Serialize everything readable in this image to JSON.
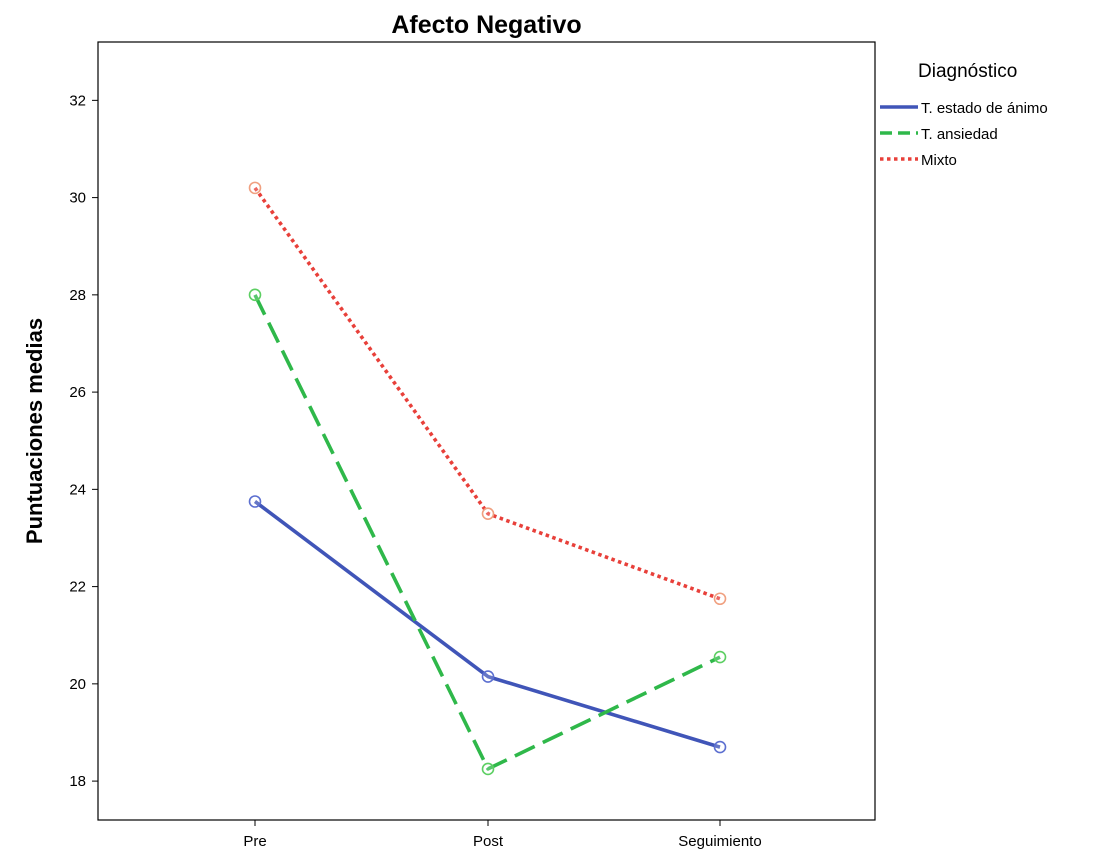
{
  "chart_data": {
    "type": "line",
    "title": "Afecto Negativo",
    "ylabel": "Puntuaciones medias",
    "xlabel": "",
    "categories": [
      "Pre",
      "Post",
      "Seguimiento"
    ],
    "ylim": [
      17.2,
      33.2
    ],
    "yticks": [
      18,
      20,
      22,
      24,
      26,
      28,
      30,
      32
    ],
    "grid": false,
    "legend": {
      "title": "Diagnóstico",
      "placement": "right"
    },
    "series": [
      {
        "name": "T. estado de ánimo",
        "values": [
          23.75,
          20.15,
          18.7
        ],
        "color": "#4055b8",
        "line_style": "solid",
        "marker_color": "#5c6fd0"
      },
      {
        "name": "T. ansiedad",
        "values": [
          28.0,
          18.25,
          20.55
        ],
        "color": "#2fb84a",
        "line_style": "dashed",
        "marker_color": "#5ccf62"
      },
      {
        "name": "Mixto",
        "values": [
          30.2,
          23.5,
          21.75
        ],
        "color": "#e8403a",
        "line_style": "dotted",
        "marker_color": "#f0a080"
      }
    ]
  }
}
